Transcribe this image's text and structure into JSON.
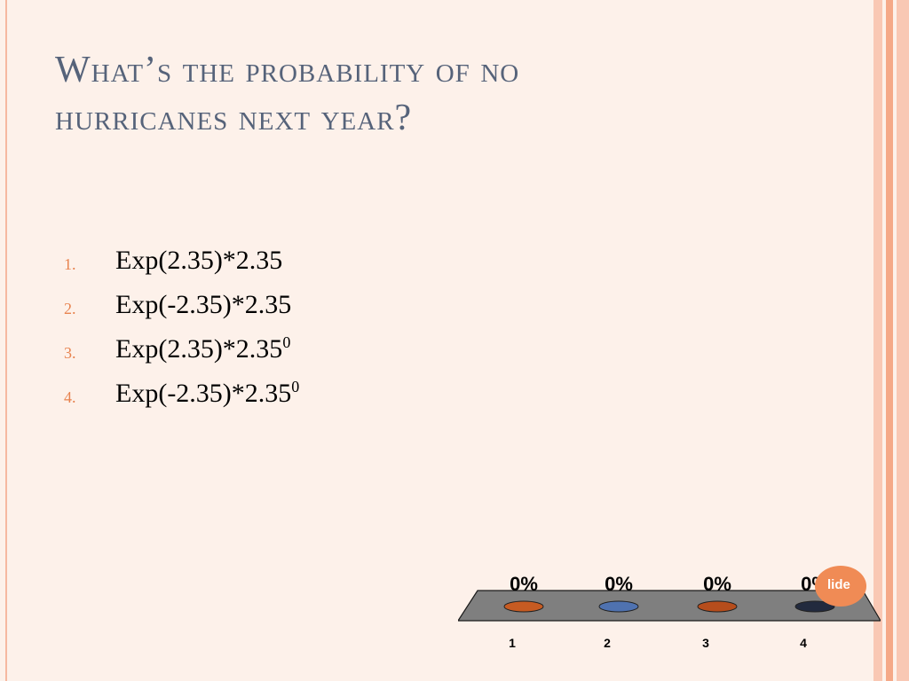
{
  "slide": {
    "title_line1": "What’s the probability of no",
    "title_line2": "hurricanes next year?",
    "answers": [
      {
        "number": "1.",
        "text": "Exp(2.35)*2.35",
        "superscript": ""
      },
      {
        "number": "2.",
        "text": "Exp(-2.35)*2.35",
        "superscript": ""
      },
      {
        "number": "3.",
        "text": "Exp(2.35)*2.35",
        "superscript": "0"
      },
      {
        "number": "4.",
        "text": "Exp(-2.35)*2.35",
        "superscript": "0"
      }
    ],
    "badge_text": "lide"
  },
  "colors": {
    "background": "#fdf1ea",
    "title": "#56637a",
    "list_number": "#e8834f",
    "stripes": [
      "#f9c8b4",
      "#f5a988",
      "#f9c8b4"
    ],
    "platform": "#7f7f7f",
    "badge": "#f08b55"
  },
  "chart_data": {
    "type": "bar",
    "categories": [
      "1",
      "2",
      "3",
      "4"
    ],
    "values": [
      0,
      0,
      0,
      0
    ],
    "value_labels": [
      "0%",
      "0%",
      "0%",
      "0%"
    ],
    "colors": [
      "#c65b22",
      "#4f72b0",
      "#b64d1c",
      "#222a3e"
    ],
    "ylim": [
      0,
      100
    ]
  }
}
